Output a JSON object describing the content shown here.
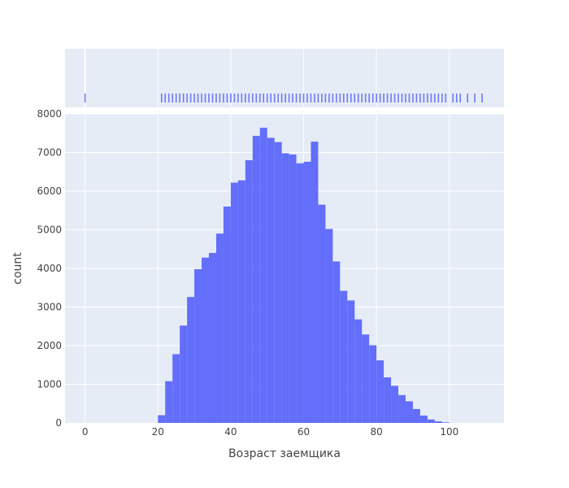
{
  "chart_data": {
    "type": "bar",
    "xlabel": "Возраст заемщика",
    "ylabel": "count",
    "xlim": [
      -5.5,
      115
    ],
    "ylim": [
      0,
      8000
    ],
    "x_ticks": [
      0,
      20,
      40,
      60,
      80,
      100
    ],
    "y_ticks": [
      0,
      1000,
      2000,
      3000,
      4000,
      5000,
      6000,
      7000,
      8000
    ],
    "bin_width": 2,
    "grid": true,
    "bar_color": "#636efa",
    "plot_bg": "#e5ecf6",
    "grid_color": "#ffffff",
    "bins": [
      {
        "x0": 20,
        "count": 200
      },
      {
        "x0": 22,
        "count": 1080
      },
      {
        "x0": 24,
        "count": 1780
      },
      {
        "x0": 26,
        "count": 2520
      },
      {
        "x0": 28,
        "count": 3260
      },
      {
        "x0": 30,
        "count": 3980
      },
      {
        "x0": 32,
        "count": 4280
      },
      {
        "x0": 34,
        "count": 4400
      },
      {
        "x0": 36,
        "count": 4900
      },
      {
        "x0": 38,
        "count": 5600
      },
      {
        "x0": 40,
        "count": 6220
      },
      {
        "x0": 42,
        "count": 6280
      },
      {
        "x0": 44,
        "count": 6800
      },
      {
        "x0": 46,
        "count": 7430
      },
      {
        "x0": 48,
        "count": 7640
      },
      {
        "x0": 50,
        "count": 7380
      },
      {
        "x0": 52,
        "count": 7270
      },
      {
        "x0": 54,
        "count": 6980
      },
      {
        "x0": 56,
        "count": 6950
      },
      {
        "x0": 58,
        "count": 6720
      },
      {
        "x0": 60,
        "count": 6760
      },
      {
        "x0": 62,
        "count": 7280
      },
      {
        "x0": 64,
        "count": 5650
      },
      {
        "x0": 66,
        "count": 5020
      },
      {
        "x0": 68,
        "count": 4180
      },
      {
        "x0": 70,
        "count": 3420
      },
      {
        "x0": 72,
        "count": 3170
      },
      {
        "x0": 74,
        "count": 2680
      },
      {
        "x0": 76,
        "count": 2290
      },
      {
        "x0": 78,
        "count": 2010
      },
      {
        "x0": 80,
        "count": 1620
      },
      {
        "x0": 82,
        "count": 1180
      },
      {
        "x0": 84,
        "count": 960
      },
      {
        "x0": 86,
        "count": 720
      },
      {
        "x0": 88,
        "count": 560
      },
      {
        "x0": 90,
        "count": 360
      },
      {
        "x0": 92,
        "count": 190
      },
      {
        "x0": 94,
        "count": 90
      },
      {
        "x0": 96,
        "count": 40
      },
      {
        "x0": 98,
        "count": 15
      }
    ],
    "rug": {
      "type": "rug",
      "values": [
        0,
        21,
        22,
        23,
        24,
        25,
        26,
        27,
        28,
        29,
        30,
        31,
        32,
        33,
        34,
        35,
        36,
        37,
        38,
        39,
        40,
        41,
        42,
        43,
        44,
        45,
        46,
        47,
        48,
        49,
        50,
        51,
        52,
        53,
        54,
        55,
        56,
        57,
        58,
        59,
        60,
        61,
        62,
        63,
        64,
        65,
        66,
        67,
        68,
        69,
        70,
        71,
        72,
        73,
        74,
        75,
        76,
        77,
        78,
        79,
        80,
        81,
        82,
        83,
        84,
        85,
        86,
        87,
        88,
        89,
        90,
        91,
        92,
        93,
        94,
        95,
        96,
        97,
        98,
        99,
        101,
        102,
        103,
        105,
        107,
        109
      ]
    }
  }
}
